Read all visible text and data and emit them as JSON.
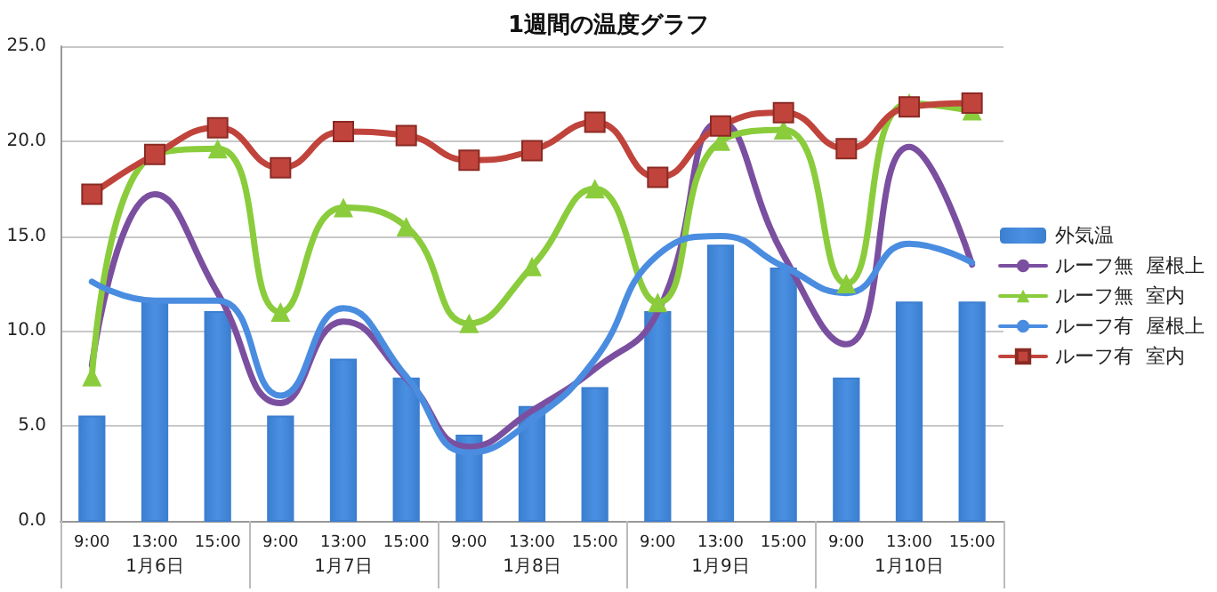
{
  "chart_data": {
    "type": "bar",
    "title": "1週間の温度グラフ",
    "categories": [
      "9:00",
      "13:00",
      "15:00",
      "9:00",
      "13:00",
      "15:00",
      "9:00",
      "13:00",
      "15:00",
      "9:00",
      "13:00",
      "15:00",
      "9:00",
      "13:00",
      "15:00"
    ],
    "annotations": [
      "1月6日",
      "1月7日",
      "1月8日",
      "1月9日",
      "1月10日"
    ],
    "series": [
      {
        "name": "外気温",
        "color": "#3c7fd0",
        "values": [
          5.5,
          11.5,
          11.0,
          5.5,
          8.5,
          7.5,
          4.5,
          6.0,
          7.0,
          11.0,
          14.5,
          13.3,
          7.5,
          11.5,
          11.5
        ]
      },
      {
        "name": "ルーフ無  屋根上",
        "type": "line",
        "color": "#7b4fa0",
        "marker": "none",
        "values": [
          8.2,
          17.2,
          12.0,
          6.2,
          10.5,
          7.5,
          3.9,
          5.8,
          8.0,
          11.0,
          21.0,
          14.0,
          9.3,
          19.7,
          13.5
        ]
      },
      {
        "name": "ルーフ無  室内",
        "type": "line",
        "color": "#8acc3c",
        "marker": "triangle",
        "values": [
          7.6,
          19.3,
          19.6,
          11.0,
          16.5,
          15.5,
          10.4,
          13.4,
          17.5,
          11.5,
          20.0,
          20.6,
          12.5,
          22.0,
          21.6
        ]
      },
      {
        "name": "ルーフ有  屋根上",
        "type": "line",
        "color": "#4a8de0",
        "marker": "none",
        "values": [
          12.6,
          11.6,
          11.6,
          6.6,
          11.2,
          7.6,
          3.6,
          5.3,
          8.5,
          14.0,
          15.0,
          13.4,
          12.0,
          14.6,
          13.6
        ]
      },
      {
        "name": "ルーフ有  室内",
        "type": "line",
        "color": "#c0443c",
        "marker": "square",
        "values": [
          17.2,
          19.3,
          20.7,
          18.6,
          20.5,
          20.3,
          19.0,
          19.5,
          21.0,
          18.1,
          20.8,
          21.5,
          19.6,
          21.8,
          22.0
        ]
      }
    ],
    "ylim": [
      0,
      25
    ],
    "yticks": [
      {
        "value": 0,
        "label": "0.0"
      },
      {
        "value": 5,
        "label": "5.0"
      },
      {
        "value": 10,
        "label": "10.0"
      },
      {
        "value": 15,
        "label": "15.0"
      },
      {
        "value": 20,
        "label": "20.0"
      },
      {
        "value": 25,
        "label": "25.0"
      }
    ],
    "grid": "y",
    "legend": "right",
    "line_style": "solid"
  }
}
